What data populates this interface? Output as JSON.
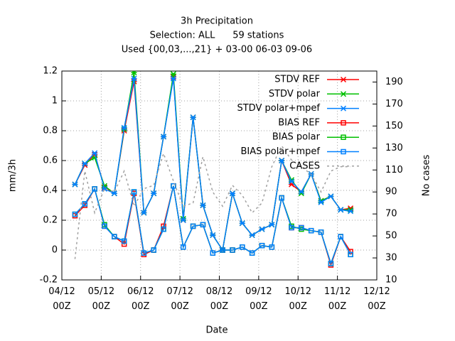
{
  "chart_data": {
    "type": "line",
    "title": "3h Precipitation",
    "subtitle": [
      "Selection: ALL      59 stations",
      "Used {00,03,...,21} + 03-00 06-03 09-06"
    ],
    "xlabel": "Date",
    "ylabel": "mm/3h",
    "y2label": "No cases",
    "x": [
      8,
      14,
      20,
      26,
      32,
      38,
      44,
      50,
      56,
      62,
      68,
      74,
      80,
      86,
      92,
      98,
      104,
      110,
      116,
      122,
      128,
      134,
      140,
      146,
      152,
      158,
      164,
      170,
      176
    ],
    "xlim": [
      0,
      192
    ],
    "xticks": [
      {
        "value": 0,
        "label": "04/12\n00Z"
      },
      {
        "value": 24,
        "label": "05/12\n00Z"
      },
      {
        "value": 48,
        "label": "06/12\n00Z"
      },
      {
        "value": 72,
        "label": "07/12\n00Z"
      },
      {
        "value": 96,
        "label": "08/12\n00Z"
      },
      {
        "value": 120,
        "label": "09/12\n00Z"
      },
      {
        "value": 144,
        "label": "10/12\n00Z"
      },
      {
        "value": 168,
        "label": "11/12\n00Z"
      },
      {
        "value": 192,
        "label": "12/12\n00Z"
      }
    ],
    "ylim": [
      -0.2,
      1.2
    ],
    "yticks": [
      -0.2,
      0,
      0.2,
      0.4,
      0.6,
      0.8,
      1,
      1.2
    ],
    "y2lim": [
      10,
      200
    ],
    "y2ticks": [
      10,
      30,
      50,
      70,
      90,
      110,
      130,
      150,
      170,
      190
    ],
    "grid": true,
    "legend": "upper right",
    "series": [
      {
        "name": "STDV REF",
        "color": "#ff0000",
        "marker": "x",
        "values": [
          0.44,
          0.57,
          0.64,
          0.42,
          0.38,
          0.8,
          1.13,
          0.25,
          0.38,
          0.76,
          1.16,
          0.2,
          0.89,
          0.3,
          0.1,
          0.0,
          0.38,
          0.18,
          0.1,
          0.14,
          0.17,
          0.6,
          0.44,
          0.39,
          0.51,
          0.33,
          0.36,
          0.27,
          0.28
        ]
      },
      {
        "name": "STDV polar",
        "color": "#00c000",
        "marker": "x",
        "values": [
          0.44,
          0.58,
          0.62,
          0.43,
          0.38,
          0.81,
          1.19,
          0.25,
          0.38,
          0.76,
          1.18,
          0.21,
          0.89,
          0.3,
          0.1,
          0.0,
          0.38,
          0.18,
          0.1,
          0.14,
          0.17,
          0.6,
          0.47,
          0.38,
          0.51,
          0.33,
          0.36,
          0.27,
          0.27
        ]
      },
      {
        "name": "STDV polar+mpef",
        "color": "#0080ff",
        "marker": "x",
        "values": [
          0.44,
          0.58,
          0.65,
          0.41,
          0.38,
          0.82,
          1.15,
          0.25,
          0.38,
          0.76,
          1.15,
          0.2,
          0.89,
          0.3,
          0.1,
          0.0,
          0.38,
          0.18,
          0.1,
          0.14,
          0.17,
          0.6,
          0.46,
          0.39,
          0.51,
          0.32,
          0.36,
          0.27,
          0.26
        ]
      },
      {
        "name": "BIAS REF",
        "color": "#ff0000",
        "marker": "square",
        "values": [
          0.23,
          0.3,
          0.41,
          0.16,
          0.09,
          0.04,
          0.38,
          -0.03,
          0.0,
          0.16,
          0.43,
          0.02,
          0.16,
          0.17,
          -0.02,
          0.0,
          0.0,
          0.02,
          -0.02,
          0.03,
          0.02,
          0.35,
          0.15,
          0.15,
          0.13,
          0.12,
          -0.1,
          0.09,
          -0.01
        ]
      },
      {
        "name": "BIAS polar",
        "color": "#00c000",
        "marker": "square",
        "values": [
          0.24,
          0.31,
          0.41,
          0.17,
          0.09,
          0.06,
          0.39,
          -0.02,
          0.0,
          0.14,
          0.43,
          0.02,
          0.16,
          0.17,
          -0.02,
          0.0,
          0.0,
          0.02,
          -0.02,
          0.03,
          0.02,
          0.35,
          0.16,
          0.14,
          0.13,
          0.12,
          -0.09,
          0.09,
          -0.03
        ]
      },
      {
        "name": "BIAS polar+mpef",
        "color": "#0080ff",
        "marker": "square",
        "values": [
          0.24,
          0.31,
          0.41,
          0.16,
          0.09,
          0.06,
          0.39,
          -0.02,
          0.0,
          0.14,
          0.43,
          0.02,
          0.16,
          0.17,
          -0.02,
          0.0,
          0.0,
          0.02,
          -0.02,
          0.03,
          0.02,
          0.35,
          0.15,
          0.15,
          0.13,
          0.12,
          -0.09,
          0.09,
          -0.03
        ]
      },
      {
        "name": "CASES",
        "color": "#a0a0a0",
        "dashed": true,
        "axis": "y2",
        "values": [
          29,
          109,
          71,
          93,
          90,
          109,
          77,
          93,
          96,
          125,
          100,
          77,
          80,
          122,
          90,
          77,
          96,
          87,
          71,
          80,
          113,
          132,
          119,
          113,
          106,
          90,
          109,
          113,
          113
        ]
      }
    ]
  }
}
